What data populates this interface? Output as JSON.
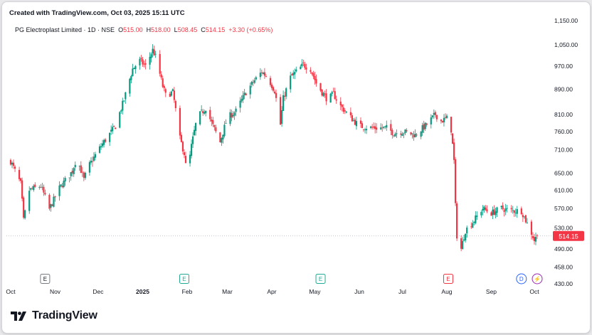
{
  "header": {
    "created": "Created with TradingView.com, Oct 03, 2025 15:11 UTC",
    "symbol": "PG Electroplast Limited · 1D · NSE",
    "open_label": "O",
    "open": "515.00",
    "high_label": "H",
    "high": "518.00",
    "low_label": "L",
    "low": "508.45",
    "close_label": "C",
    "close": "514.15",
    "change": "+3.30 (+0.65%)"
  },
  "brand": {
    "name": "TradingView"
  },
  "colors": {
    "up": "#089981",
    "down": "#f23645",
    "text": "#131722",
    "last_price_bg": "#f23645"
  },
  "chart_data": {
    "type": "candlestick",
    "y_axis": {
      "scale": "log",
      "range": [
        430,
        1150
      ],
      "tick_labels": [
        "1,150.00",
        "1,050.00",
        "970.00",
        "890.00",
        "810.00",
        "760.00",
        "710.00",
        "650.00",
        "610.00",
        "570.00",
        "530.00",
        "490.00",
        "458.00",
        "430.00"
      ],
      "tick_values": [
        1150,
        1050,
        970,
        890,
        810,
        760,
        710,
        650,
        610,
        570,
        530,
        490,
        458,
        430
      ]
    },
    "x_axis": {
      "range": [
        "2024-10-01",
        "2025-10-03"
      ],
      "tick_labels": [
        "Oct",
        "Nov",
        "Dec",
        "2025",
        "Feb",
        "Mar",
        "Apr",
        "May",
        "Jun",
        "Jul",
        "Aug",
        "Sep",
        "Oct"
      ],
      "tick_dates": [
        "2024-10-01",
        "2024-11-01",
        "2024-12-01",
        "2025-01-01",
        "2025-02-01",
        "2025-03-01",
        "2025-04-01",
        "2025-05-01",
        "2025-06-01",
        "2025-07-01",
        "2025-08-01",
        "2025-09-01",
        "2025-10-01"
      ]
    },
    "last_price": {
      "label": "514.15",
      "value": 514.15
    },
    "events": [
      {
        "date": "2024-10-25",
        "label": "E",
        "kind": "earnings-past"
      },
      {
        "date": "2025-01-30",
        "label": "E",
        "kind": "earnings-recent"
      },
      {
        "date": "2025-05-05",
        "label": "E",
        "kind": "earnings-recent"
      },
      {
        "date": "2025-08-02",
        "label": "E",
        "kind": "earnings-red"
      },
      {
        "date": "2025-09-22",
        "label": "D",
        "kind": "dividend"
      },
      {
        "date": "2025-10-03",
        "label": "⚡",
        "kind": "split"
      }
    ],
    "keyframes": [
      {
        "date": "2024-10-01",
        "close": 680
      },
      {
        "date": "2024-10-05",
        "close": 648
      },
      {
        "date": "2024-10-08",
        "close": 625
      },
      {
        "date": "2024-10-10",
        "close": 545
      },
      {
        "date": "2024-10-14",
        "close": 610
      },
      {
        "date": "2024-10-22",
        "close": 620
      },
      {
        "date": "2024-10-28",
        "close": 568
      },
      {
        "date": "2024-11-04",
        "close": 615
      },
      {
        "date": "2024-11-13",
        "close": 655
      },
      {
        "date": "2024-11-16",
        "close": 690
      },
      {
        "date": "2024-11-21",
        "close": 635
      },
      {
        "date": "2024-11-24",
        "close": 665
      },
      {
        "date": "2024-12-03",
        "close": 720
      },
      {
        "date": "2024-12-13",
        "close": 775
      },
      {
        "date": "2024-12-19",
        "close": 855
      },
      {
        "date": "2024-12-25",
        "close": 960
      },
      {
        "date": "2024-12-30",
        "close": 990
      },
      {
        "date": "2025-01-03",
        "close": 970
      },
      {
        "date": "2025-01-08",
        "close": 1030
      },
      {
        "date": "2025-01-10",
        "close": 1005
      },
      {
        "date": "2025-01-15",
        "close": 900
      },
      {
        "date": "2025-01-17",
        "close": 870
      },
      {
        "date": "2025-01-22",
        "close": 880
      },
      {
        "date": "2025-01-27",
        "close": 740
      },
      {
        "date": "2025-01-30",
        "close": 700
      },
      {
        "date": "2025-02-01",
        "close": 640
      },
      {
        "date": "2025-02-04",
        "close": 720
      },
      {
        "date": "2025-02-08",
        "close": 800
      },
      {
        "date": "2025-02-14",
        "close": 830
      },
      {
        "date": "2025-02-18",
        "close": 785
      },
      {
        "date": "2025-02-24",
        "close": 730
      },
      {
        "date": "2025-03-01",
        "close": 800
      },
      {
        "date": "2025-03-07",
        "close": 820
      },
      {
        "date": "2025-03-14",
        "close": 880
      },
      {
        "date": "2025-03-20",
        "close": 920
      },
      {
        "date": "2025-03-25",
        "close": 950
      },
      {
        "date": "2025-03-29",
        "close": 930
      },
      {
        "date": "2025-04-03",
        "close": 885
      },
      {
        "date": "2025-04-07",
        "close": 780
      },
      {
        "date": "2025-04-09",
        "close": 860
      },
      {
        "date": "2025-04-14",
        "close": 930
      },
      {
        "date": "2025-04-18",
        "close": 950
      },
      {
        "date": "2025-04-23",
        "close": 975
      },
      {
        "date": "2025-04-28",
        "close": 960
      },
      {
        "date": "2025-05-02",
        "close": 910
      },
      {
        "date": "2025-05-06",
        "close": 880
      },
      {
        "date": "2025-05-10",
        "close": 855
      },
      {
        "date": "2025-05-14",
        "close": 875
      },
      {
        "date": "2025-05-18",
        "close": 840
      },
      {
        "date": "2025-05-25",
        "close": 805
      },
      {
        "date": "2025-06-01",
        "close": 775
      },
      {
        "date": "2025-06-10",
        "close": 770
      },
      {
        "date": "2025-06-20",
        "close": 770
      },
      {
        "date": "2025-06-25",
        "close": 755
      },
      {
        "date": "2025-07-01",
        "close": 760
      },
      {
        "date": "2025-07-10",
        "close": 750
      },
      {
        "date": "2025-07-18",
        "close": 780
      },
      {
        "date": "2025-07-24",
        "close": 810
      },
      {
        "date": "2025-07-28",
        "close": 790
      },
      {
        "date": "2025-08-02",
        "close": 800
      },
      {
        "date": "2025-08-04",
        "close": 765
      },
      {
        "date": "2025-08-06",
        "close": 680
      },
      {
        "date": "2025-08-07",
        "close": 575
      },
      {
        "date": "2025-08-08",
        "close": 515
      },
      {
        "date": "2025-08-11",
        "close": 490
      },
      {
        "date": "2025-08-14",
        "close": 525
      },
      {
        "date": "2025-08-20",
        "close": 545
      },
      {
        "date": "2025-08-26",
        "close": 570
      },
      {
        "date": "2025-09-01",
        "close": 560
      },
      {
        "date": "2025-09-08",
        "close": 570
      },
      {
        "date": "2025-09-15",
        "close": 565
      },
      {
        "date": "2025-09-22",
        "close": 565
      },
      {
        "date": "2025-09-25",
        "close": 545
      },
      {
        "date": "2025-09-29",
        "close": 520
      },
      {
        "date": "2025-10-01",
        "close": 506
      },
      {
        "date": "2025-10-03",
        "close": 514.15
      }
    ]
  }
}
